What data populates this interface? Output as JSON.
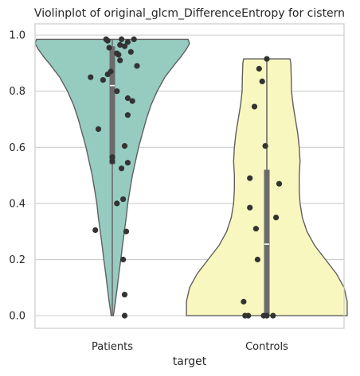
{
  "chart_data": {
    "type": "violin",
    "title": "Violinplot of original_glcm_DifferenceEntropy for cistern",
    "xlabel": "target",
    "ylabel": "",
    "categories": [
      "Patients",
      "Controls"
    ],
    "ylim": [
      -0.045,
      1.04
    ],
    "yticks": [
      "0.0",
      "0.2",
      "0.4",
      "0.6",
      "0.8",
      "1.0"
    ],
    "ytick_values": [
      0.0,
      0.2,
      0.4,
      0.6,
      0.8,
      1.0
    ],
    "grid": true,
    "colors": {
      "Patients": "#96cbc0",
      "Controls": "#f8f7bf",
      "edge": "#5f5f5f",
      "box": "#6b6b6b",
      "points": "#333333",
      "grid": "#cccccc"
    },
    "violins": [
      {
        "category": "Patients",
        "profile": [
          [
            0.985,
            0.49
          ],
          [
            0.97,
            0.5
          ],
          [
            0.95,
            0.48
          ],
          [
            0.92,
            0.44
          ],
          [
            0.9,
            0.41
          ],
          [
            0.85,
            0.34
          ],
          [
            0.8,
            0.29
          ],
          [
            0.75,
            0.25
          ],
          [
            0.7,
            0.22
          ],
          [
            0.65,
            0.195
          ],
          [
            0.6,
            0.17
          ],
          [
            0.55,
            0.15
          ],
          [
            0.5,
            0.13
          ],
          [
            0.45,
            0.115
          ],
          [
            0.4,
            0.1
          ],
          [
            0.35,
            0.09
          ],
          [
            0.3,
            0.078
          ],
          [
            0.25,
            0.066
          ],
          [
            0.2,
            0.055
          ],
          [
            0.15,
            0.043
          ],
          [
            0.1,
            0.032
          ],
          [
            0.05,
            0.02
          ],
          [
            0.0,
            0.007
          ]
        ],
        "box": {
          "q1": 0.54,
          "median": 0.82,
          "q3": 0.96,
          "whisker_low": 0.0,
          "whisker_high": 0.985
        }
      },
      {
        "category": "Controls",
        "profile": [
          [
            0.915,
            0.15
          ],
          [
            0.9,
            0.155
          ],
          [
            0.85,
            0.158
          ],
          [
            0.8,
            0.16
          ],
          [
            0.75,
            0.17
          ],
          [
            0.7,
            0.185
          ],
          [
            0.65,
            0.2
          ],
          [
            0.6,
            0.21
          ],
          [
            0.55,
            0.215
          ],
          [
            0.5,
            0.21
          ],
          [
            0.45,
            0.21
          ],
          [
            0.4,
            0.215
          ],
          [
            0.35,
            0.23
          ],
          [
            0.3,
            0.26
          ],
          [
            0.25,
            0.31
          ],
          [
            0.2,
            0.38
          ],
          [
            0.15,
            0.45
          ],
          [
            0.1,
            0.5
          ],
          [
            0.05,
            0.52
          ],
          [
            0.0,
            0.52
          ]
        ],
        "box": {
          "q1": 0.0,
          "median": 0.255,
          "q3": 0.52,
          "whisker_low": 0.0,
          "whisker_high": 0.915
        }
      }
    ],
    "points": {
      "Patients": [
        [
          -0.04,
          0.985
        ],
        [
          -0.03,
          0.98
        ],
        [
          0.06,
          0.985
        ],
        [
          0.14,
          0.985
        ],
        [
          0.1,
          0.975
        ],
        [
          0.05,
          0.965
        ],
        [
          0.08,
          0.96
        ],
        [
          -0.02,
          0.955
        ],
        [
          0.12,
          0.94
        ],
        [
          0.03,
          0.935
        ],
        [
          0.04,
          0.93
        ],
        [
          0.05,
          0.91
        ],
        [
          0.16,
          0.89
        ],
        [
          -0.01,
          0.87
        ],
        [
          -0.03,
          0.86
        ],
        [
          -0.14,
          0.85
        ],
        [
          -0.06,
          0.84
        ],
        [
          0.03,
          0.8
        ],
        [
          0.1,
          0.775
        ],
        [
          0.13,
          0.765
        ],
        [
          0.1,
          0.715
        ],
        [
          -0.09,
          0.665
        ],
        [
          0.08,
          0.605
        ],
        [
          0.0,
          0.565
        ],
        [
          0.0,
          0.55
        ],
        [
          0.1,
          0.545
        ],
        [
          0.06,
          0.525
        ],
        [
          0.07,
          0.415
        ],
        [
          0.03,
          0.4
        ],
        [
          -0.11,
          0.305
        ],
        [
          0.09,
          0.3
        ],
        [
          0.07,
          0.2
        ],
        [
          0.08,
          0.075
        ],
        [
          0.08,
          0.0
        ]
      ],
      "Controls": [
        [
          0.0,
          0.915
        ],
        [
          -0.05,
          0.88
        ],
        [
          -0.03,
          0.835
        ],
        [
          -0.08,
          0.745
        ],
        [
          -0.01,
          0.605
        ],
        [
          -0.11,
          0.49
        ],
        [
          0.08,
          0.47
        ],
        [
          -0.11,
          0.385
        ],
        [
          0.06,
          0.35
        ],
        [
          -0.07,
          0.31
        ],
        [
          -0.06,
          0.2
        ],
        [
          -0.15,
          0.05
        ],
        [
          -0.14,
          0.0
        ],
        [
          -0.12,
          0.0
        ],
        [
          -0.02,
          0.0
        ],
        [
          0.0,
          0.0
        ],
        [
          0.04,
          0.0
        ]
      ]
    }
  }
}
